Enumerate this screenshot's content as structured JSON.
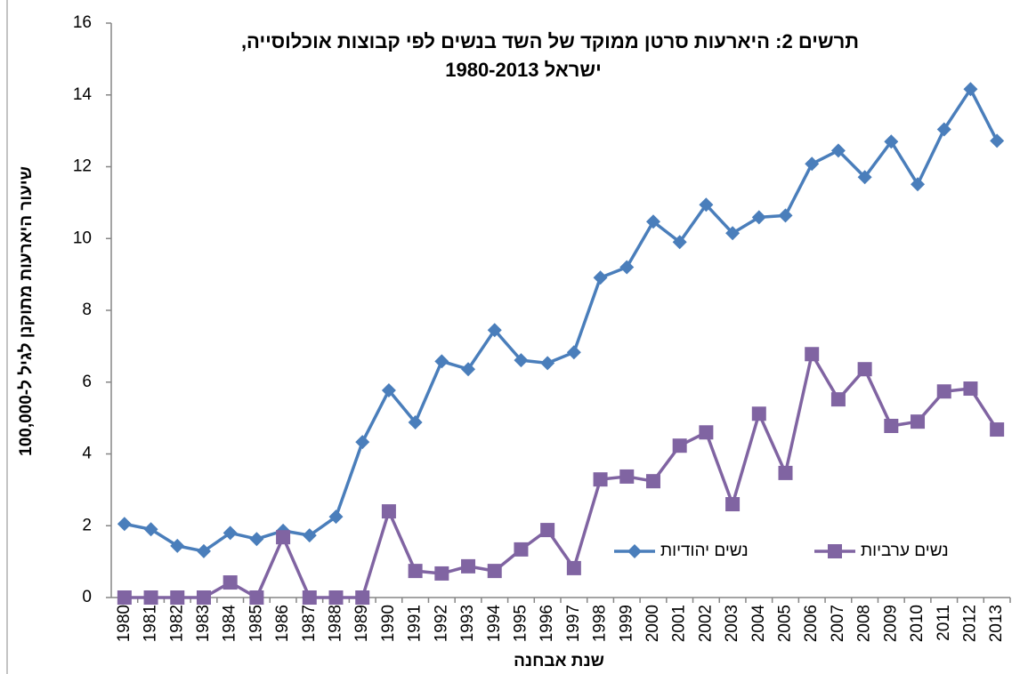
{
  "chart_data": {
    "type": "line",
    "title": [
      "תרשים 2: היארעות סרטן ממוקד של השד בנשים לפי קבוצות אוכלוסייה,",
      "ישראל  1980-2013"
    ],
    "y_label": "שיעור היארעות מתוקנן לגיל ל-100,000",
    "x_label": "שנת אבחנה",
    "categories": [
      "1980",
      "1981",
      "1982",
      "1983",
      "1984",
      "1985",
      "1986",
      "1987",
      "1988",
      "1989",
      "1990",
      "1991",
      "1992",
      "1993",
      "1994",
      "1995",
      "1996",
      "1997",
      "1998",
      "1999",
      "2000",
      "2001",
      "2002",
      "2003",
      "2004",
      "2005",
      "2006",
      "2007",
      "2008",
      "2009",
      "2010",
      "2011",
      "2012",
      "2013"
    ],
    "series": [
      {
        "name": "נשים יהודיות",
        "color": "#4a7ebb",
        "marker": "diamond",
        "values": [
          2.05,
          1.9,
          1.44,
          1.29,
          1.8,
          1.63,
          1.86,
          1.73,
          2.25,
          4.33,
          5.77,
          4.88,
          6.58,
          6.36,
          7.45,
          6.61,
          6.53,
          6.83,
          8.91,
          9.2,
          10.47,
          9.9,
          10.94,
          10.15,
          10.59,
          10.64,
          12.08,
          12.45,
          11.71,
          12.7,
          11.51,
          13.04,
          14.16,
          12.72
        ]
      },
      {
        "name": "נשים ערביות",
        "color": "#8064a2",
        "marker": "square",
        "values": [
          0,
          0,
          0,
          0,
          0.42,
          0,
          1.68,
          0,
          0,
          0,
          2.4,
          0.74,
          0.67,
          0.87,
          0.74,
          1.34,
          1.88,
          0.82,
          3.29,
          3.37,
          3.24,
          4.23,
          4.6,
          2.6,
          5.12,
          3.47,
          6.78,
          5.52,
          6.36,
          4.78,
          4.9,
          5.74,
          5.82,
          4.68
        ]
      }
    ],
    "ylim": [
      0,
      16
    ],
    "yticks": [
      0,
      2,
      4,
      6,
      8,
      10,
      12,
      14,
      16
    ]
  }
}
